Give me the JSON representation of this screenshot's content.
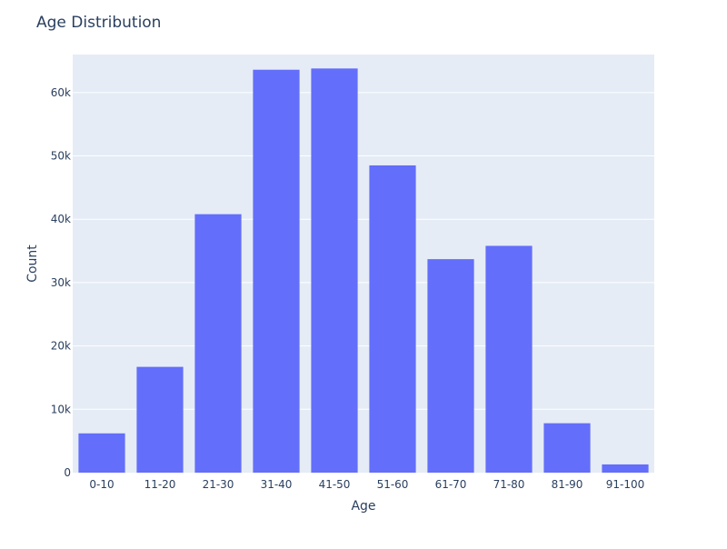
{
  "chart_data": {
    "type": "bar",
    "title": "Age Distribution",
    "xlabel": "Age",
    "ylabel": "Count",
    "categories": [
      "0-10",
      "11-20",
      "21-30",
      "31-40",
      "41-50",
      "51-60",
      "61-70",
      "71-80",
      "81-90",
      "91-100"
    ],
    "values": [
      6200,
      16700,
      40800,
      63600,
      63800,
      48500,
      33700,
      35800,
      7800,
      1300
    ],
    "ylim": [
      0,
      66000
    ],
    "yticks": [
      0,
      10000,
      20000,
      30000,
      40000,
      50000,
      60000
    ],
    "ytick_labels": [
      "0",
      "10k",
      "20k",
      "30k",
      "40k",
      "50k",
      "60k"
    ],
    "grid": true,
    "colors": {
      "bar": "#636efa",
      "plot_background": "#e5ecf6",
      "grid": "#ffffff",
      "text": "#2a3f5f"
    }
  }
}
